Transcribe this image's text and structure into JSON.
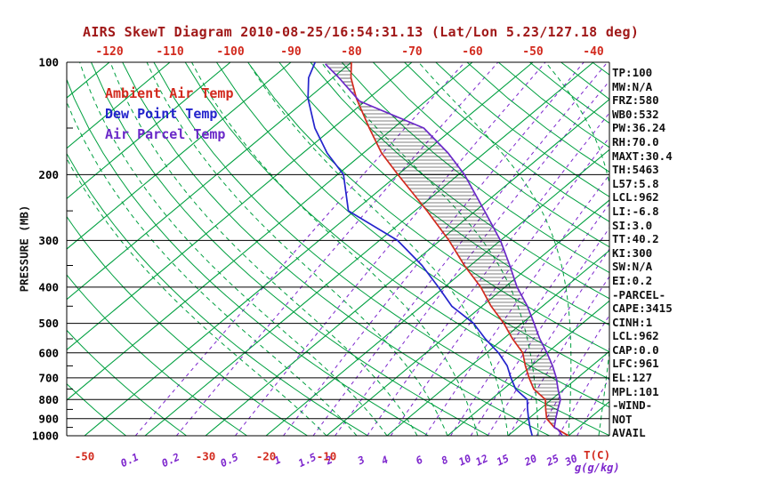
{
  "title": "AIRS SkewT Diagram 2010-08-25/16:54:31.13 (Lat/Lon 5.23/127.18 deg)",
  "legend": {
    "ambient": {
      "label": "Ambient Air Temp",
      "color": "#d22a1e"
    },
    "dewpoint": {
      "label": "Dew Point Temp",
      "color": "#2424cc"
    },
    "parcel": {
      "label": "Air Parcel Temp",
      "color": "#6a28c8"
    }
  },
  "info_panel": {
    "lines": [
      "TP:100",
      "MW:N/A",
      "FRZ:580",
      "WB0:532",
      "PW:36.24",
      "RH:70.0",
      "MAXT:30.4",
      "TH:5463",
      "L57:5.8",
      "LCL:962",
      "LI:-6.8",
      "SI:3.0",
      "TT:40.2",
      "KI:300",
      "SW:N/A",
      "EI:0.2",
      "-PARCEL-",
      "CAPE:3415",
      "CINH:1",
      "LCL:962",
      "CAP:0.0",
      "LFC:961",
      "EL:127",
      "MPL:101",
      "-WIND-",
      "NOT",
      "AVAIL"
    ]
  },
  "chart_data": {
    "type": "line",
    "variant": "skewt-log-p",
    "title": "AIRS SkewT Diagram 2010-08-25/16:54:31.13 (Lat/Lon 5.23/127.18 deg)",
    "ylabel": "PRESSURE (MB)",
    "xlabel": "T(C)",
    "mixing_label": "g(g/kg)",
    "pressure_range": [
      100,
      1000
    ],
    "pressure_ticks": [
      100,
      200,
      300,
      400,
      500,
      600,
      700,
      800,
      900,
      1000
    ],
    "pressure_minor_ticks": [
      150,
      250,
      350,
      450,
      550,
      650,
      750,
      850,
      950
    ],
    "top_temp_ticks": [
      -120,
      -110,
      -100,
      -90,
      -80,
      -70,
      -60,
      -50,
      -40
    ],
    "bottom_temp_ticks": [
      -50,
      -30,
      -20,
      -10
    ],
    "mixing_ratio_lines": [
      0.1,
      0.2,
      0.5,
      1,
      1.5,
      2,
      3,
      4,
      6,
      8,
      10,
      12,
      15,
      20,
      25,
      30
    ],
    "isotherms_c": {
      "min": -120,
      "max": 40,
      "step": 10
    },
    "dry_adiabats_k": {
      "min": 220,
      "max": 460,
      "step": 10
    },
    "moist_adiabats_c": [
      -10,
      -5,
      0,
      5,
      10,
      15,
      20,
      25,
      30,
      35,
      40
    ],
    "hatch": {
      "p_top": 101,
      "p_bottom": 961
    },
    "colors": {
      "isotherm": "#00a040",
      "adiabat": "#00a040",
      "moist": "#00a040",
      "mixing": "#7d26cd",
      "pressure_line": "#000000",
      "hatch": "#000000",
      "title": "#a01818",
      "tick_red": "#d22a1e",
      "tick_black": "#000000"
    },
    "series": [
      {
        "name": "Ambient Air Temp",
        "key": "ambient",
        "color": "#d22a1e",
        "points": [
          [
            100,
            -80
          ],
          [
            110,
            -77
          ],
          [
            125,
            -72
          ],
          [
            150,
            -64
          ],
          [
            175,
            -57
          ],
          [
            200,
            -50
          ],
          [
            250,
            -38
          ],
          [
            300,
            -28.5
          ],
          [
            350,
            -21
          ],
          [
            400,
            -14
          ],
          [
            450,
            -8.5
          ],
          [
            500,
            -3
          ],
          [
            550,
            1.5
          ],
          [
            600,
            6
          ],
          [
            650,
            9
          ],
          [
            700,
            12
          ],
          [
            750,
            15
          ],
          [
            800,
            19
          ],
          [
            850,
            21
          ],
          [
            900,
            23
          ],
          [
            950,
            26
          ],
          [
            1000,
            30
          ]
        ]
      },
      {
        "name": "Dew Point Temp",
        "key": "dewpoint",
        "color": "#2424cc",
        "points": [
          [
            100,
            -86
          ],
          [
            110,
            -84
          ],
          [
            125,
            -80
          ],
          [
            150,
            -73
          ],
          [
            175,
            -66
          ],
          [
            200,
            -59
          ],
          [
            250,
            -51
          ],
          [
            300,
            -37
          ],
          [
            350,
            -28
          ],
          [
            400,
            -21
          ],
          [
            450,
            -15
          ],
          [
            500,
            -8
          ],
          [
            550,
            -3
          ],
          [
            600,
            2
          ],
          [
            650,
            6
          ],
          [
            700,
            9
          ],
          [
            750,
            12
          ],
          [
            800,
            16
          ],
          [
            850,
            18
          ],
          [
            900,
            20
          ],
          [
            950,
            22
          ],
          [
            1000,
            24
          ]
        ]
      },
      {
        "name": "Air Parcel Temp",
        "key": "parcel",
        "color": "#6a28c8",
        "points": [
          [
            101,
            -84
          ],
          [
            110,
            -79
          ],
          [
            127,
            -71
          ],
          [
            150,
            -55
          ],
          [
            175,
            -46
          ],
          [
            200,
            -39
          ],
          [
            250,
            -28.5
          ],
          [
            300,
            -20
          ],
          [
            350,
            -13.5
          ],
          [
            400,
            -8
          ],
          [
            450,
            -2.5
          ],
          [
            500,
            2
          ],
          [
            550,
            6
          ],
          [
            600,
            10
          ],
          [
            650,
            13.5
          ],
          [
            700,
            16.5
          ],
          [
            750,
            19
          ],
          [
            800,
            21.5
          ],
          [
            850,
            23
          ],
          [
            900,
            24.5
          ],
          [
            950,
            26
          ],
          [
            962,
            27
          ],
          [
            1000,
            29
          ]
        ]
      }
    ]
  }
}
